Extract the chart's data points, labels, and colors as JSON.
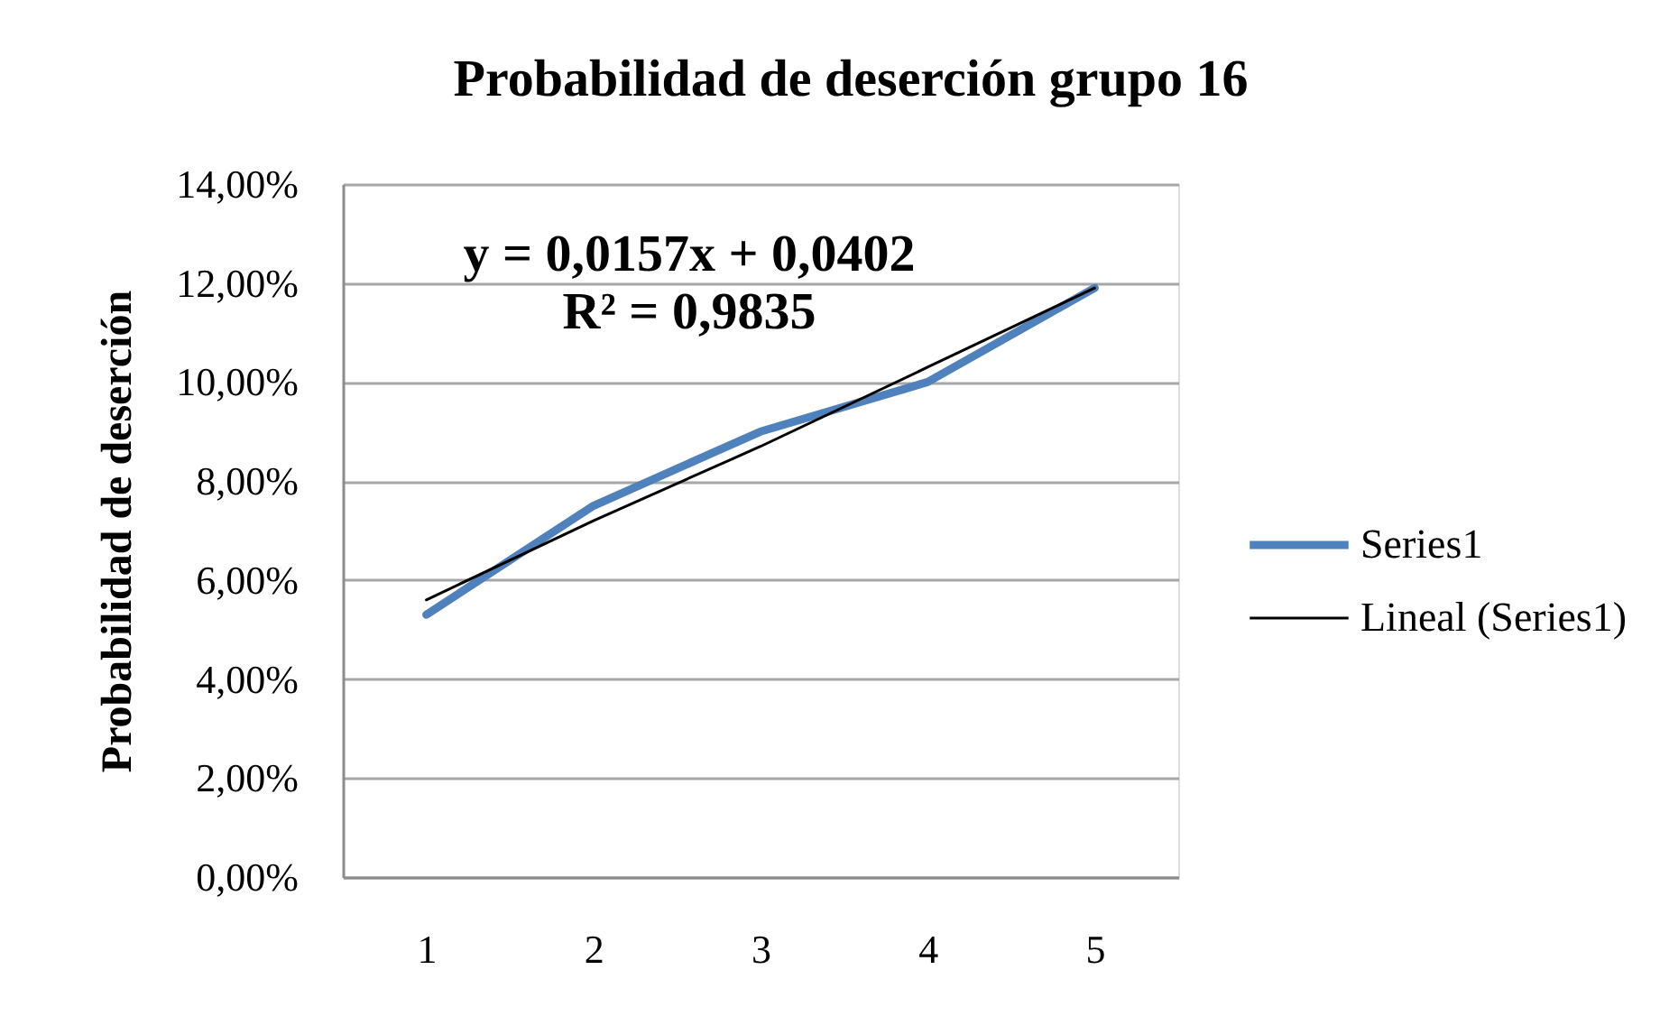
{
  "chart_data": {
    "type": "line",
    "title": "Probabilidad de deserción grupo 16",
    "ylabel": "Probabilidad de deserción",
    "categories": [
      "1",
      "2",
      "3",
      "4",
      "5"
    ],
    "series": [
      {
        "name": "Series1",
        "color": "#4f81bd",
        "values": [
          5.3,
          7.5,
          9.0,
          10.0,
          11.9
        ]
      },
      {
        "name": "Lineal (Series1)",
        "type": "line",
        "color": "#000000",
        "values": [
          5.6,
          7.2,
          8.7,
          10.3,
          11.9
        ]
      }
    ],
    "ylim": [
      0,
      14
    ],
    "yticks": [
      {
        "value": 0,
        "label": "0,00%"
      },
      {
        "value": 2,
        "label": "2,00%"
      },
      {
        "value": 4,
        "label": "4,00%"
      },
      {
        "value": 6,
        "label": "6,00%"
      },
      {
        "value": 8,
        "label": "8,00%"
      },
      {
        "value": 10,
        "label": "10,00%"
      },
      {
        "value": 12,
        "label": "12,00%"
      },
      {
        "value": 14,
        "label": "14,00%"
      }
    ],
    "grid": "y",
    "legend": "right",
    "annotations": [
      "y = 0,0157x + 0,0402",
      "R² = 0,9835"
    ]
  }
}
